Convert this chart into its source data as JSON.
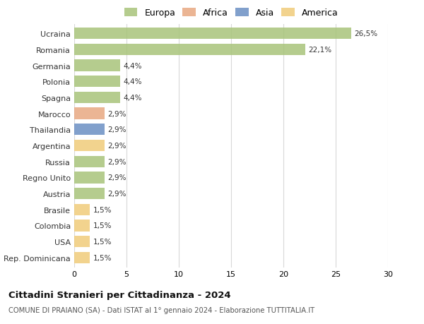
{
  "countries": [
    "Ucraina",
    "Romania",
    "Germania",
    "Polonia",
    "Spagna",
    "Marocco",
    "Thailandia",
    "Argentina",
    "Russia",
    "Regno Unito",
    "Austria",
    "Brasile",
    "Colombia",
    "USA",
    "Rep. Dominicana"
  ],
  "values": [
    26.5,
    22.1,
    4.4,
    4.4,
    4.4,
    2.9,
    2.9,
    2.9,
    2.9,
    2.9,
    2.9,
    1.5,
    1.5,
    1.5,
    1.5
  ],
  "labels": [
    "26,5%",
    "22,1%",
    "4,4%",
    "4,4%",
    "4,4%",
    "2,9%",
    "2,9%",
    "2,9%",
    "2,9%",
    "2,9%",
    "2,9%",
    "1,5%",
    "1,5%",
    "1,5%",
    "1,5%"
  ],
  "colors": [
    "#a8c47a",
    "#a8c47a",
    "#a8c47a",
    "#a8c47a",
    "#a8c47a",
    "#e8a882",
    "#6b8fc4",
    "#f0cc7a",
    "#a8c47a",
    "#a8c47a",
    "#a8c47a",
    "#f0cc7a",
    "#f0cc7a",
    "#f0cc7a",
    "#f0cc7a"
  ],
  "continent_colors_ordered": [
    [
      "Europa",
      "#a8c47a"
    ],
    [
      "Africa",
      "#e8a882"
    ],
    [
      "Asia",
      "#6b8fc4"
    ],
    [
      "America",
      "#f0cc7a"
    ]
  ],
  "title": "Cittadini Stranieri per Cittadinanza - 2024",
  "subtitle": "COMUNE DI PRAIANO (SA) - Dati ISTAT al 1° gennaio 2024 - Elaborazione TUTTITALIA.IT",
  "xlim": [
    0,
    30
  ],
  "xticks": [
    0,
    5,
    10,
    15,
    20,
    25,
    30
  ],
  "background_color": "#ffffff",
  "grid_color": "#d8d8d8",
  "bar_height": 0.72
}
